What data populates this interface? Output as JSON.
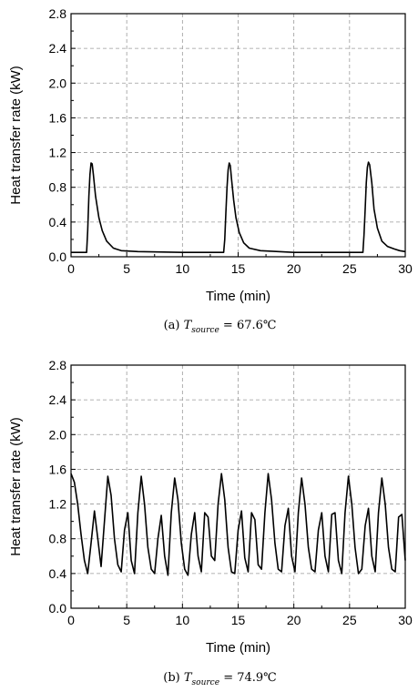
{
  "chart_data": [
    {
      "type": "line",
      "xlabel": "Time (min)",
      "ylabel": "Heat transfer rate (kW)",
      "xlim": [
        0,
        30
      ],
      "ylim": [
        0,
        2.8
      ],
      "xticks": [
        0,
        5,
        10,
        15,
        20,
        25,
        30
      ],
      "yticks": [
        0.0,
        0.4,
        0.8,
        1.2,
        1.6,
        2.0,
        2.4,
        2.8
      ],
      "ytick_labels": [
        "0.0",
        "0.4",
        "0.8",
        "1.2",
        "1.6",
        "2.0",
        "2.4",
        "2.8"
      ],
      "grid": true,
      "caption": {
        "prefix": "(a)",
        "var": "T",
        "sub": "source",
        "value": "= 67.6℃"
      },
      "series": [
        {
          "x": [
            0,
            1.4,
            1.5,
            1.6,
            1.7,
            1.8,
            1.9,
            2.0,
            2.2,
            2.5,
            2.8,
            3.2,
            3.8,
            4.5,
            6,
            10,
            13.7,
            13.8,
            13.9,
            14.0,
            14.1,
            14.2,
            14.3,
            14.4,
            14.6,
            14.8,
            15.1,
            15.5,
            16.0,
            17,
            20,
            26.2,
            26.3,
            26.4,
            26.5,
            26.6,
            26.7,
            26.8,
            27.0,
            27.2,
            27.5,
            27.9,
            28.4,
            29,
            29.5,
            30
          ],
          "y": [
            0.05,
            0.05,
            0.3,
            0.7,
            0.95,
            1.08,
            1.07,
            0.95,
            0.7,
            0.45,
            0.3,
            0.18,
            0.1,
            0.07,
            0.06,
            0.05,
            0.05,
            0.2,
            0.5,
            0.8,
            1.0,
            1.08,
            1.05,
            0.9,
            0.65,
            0.45,
            0.28,
            0.16,
            0.1,
            0.07,
            0.05,
            0.05,
            0.25,
            0.55,
            0.85,
            1.03,
            1.09,
            1.06,
            0.85,
            0.55,
            0.33,
            0.18,
            0.12,
            0.09,
            0.07,
            0.06
          ]
        }
      ]
    },
    {
      "type": "line",
      "xlabel": "Time (min)",
      "ylabel": "Heat transfer rate (kW)",
      "xlim": [
        0,
        30
      ],
      "ylim": [
        0,
        2.8
      ],
      "xticks": [
        0,
        5,
        10,
        15,
        20,
        25,
        30
      ],
      "yticks": [
        0.0,
        0.4,
        0.8,
        1.2,
        1.6,
        2.0,
        2.4,
        2.8
      ],
      "ytick_labels": [
        "0.0",
        "0.4",
        "0.8",
        "1.2",
        "1.6",
        "2.0",
        "2.4",
        "2.8"
      ],
      "grid": true,
      "caption": {
        "prefix": "(b)",
        "var": "T",
        "sub": "source",
        "value": "= 74.9℃"
      },
      "series": [
        {
          "x": [
            0,
            0.3,
            0.6,
            0.9,
            1.2,
            1.5,
            1.8,
            2.1,
            2.4,
            2.7,
            3.0,
            3.3,
            3.6,
            3.9,
            4.2,
            4.5,
            4.8,
            5.1,
            5.4,
            5.7,
            6.0,
            6.3,
            6.6,
            6.9,
            7.2,
            7.5,
            7.8,
            8.1,
            8.4,
            8.7,
            9.0,
            9.3,
            9.6,
            9.9,
            10.2,
            10.5,
            10.8,
            11.1,
            11.4,
            11.7,
            12.0,
            12.3,
            12.6,
            12.9,
            13.2,
            13.5,
            13.8,
            14.1,
            14.4,
            14.7,
            15.0,
            15.3,
            15.6,
            15.9,
            16.2,
            16.5,
            16.8,
            17.1,
            17.4,
            17.7,
            18.0,
            18.3,
            18.6,
            18.9,
            19.2,
            19.5,
            19.8,
            20.1,
            20.4,
            20.7,
            21.0,
            21.3,
            21.6,
            21.9,
            22.2,
            22.5,
            22.8,
            23.1,
            23.4,
            23.7,
            24.0,
            24.3,
            24.6,
            24.9,
            25.2,
            25.5,
            25.8,
            26.1,
            26.4,
            26.7,
            27.0,
            27.3,
            27.6,
            27.9,
            28.2,
            28.5,
            28.8,
            29.1,
            29.4,
            29.7,
            30.0
          ],
          "y": [
            1.55,
            1.45,
            1.2,
            0.85,
            0.55,
            0.4,
            0.75,
            1.12,
            0.8,
            0.48,
            1.0,
            1.52,
            1.3,
            0.8,
            0.5,
            0.42,
            0.9,
            1.1,
            0.55,
            0.4,
            1.1,
            1.52,
            1.2,
            0.7,
            0.45,
            0.4,
            0.8,
            1.07,
            0.6,
            0.38,
            1.1,
            1.5,
            1.25,
            0.75,
            0.45,
            0.38,
            0.85,
            1.1,
            0.6,
            0.42,
            1.1,
            1.05,
            0.6,
            0.55,
            1.2,
            1.55,
            1.25,
            0.7,
            0.42,
            0.4,
            0.9,
            1.12,
            0.58,
            0.42,
            1.1,
            1.02,
            0.5,
            0.45,
            1.1,
            1.55,
            1.25,
            0.75,
            0.45,
            0.42,
            0.95,
            1.15,
            0.6,
            0.42,
            1.1,
            1.5,
            1.2,
            0.7,
            0.45,
            0.42,
            0.9,
            1.1,
            0.6,
            0.42,
            1.08,
            1.1,
            0.55,
            0.4,
            1.1,
            1.52,
            1.2,
            0.7,
            0.4,
            0.45,
            0.95,
            1.15,
            0.6,
            0.42,
            1.1,
            1.5,
            1.2,
            0.7,
            0.45,
            0.42,
            1.05,
            1.08,
            0.55
          ]
        }
      ]
    }
  ]
}
